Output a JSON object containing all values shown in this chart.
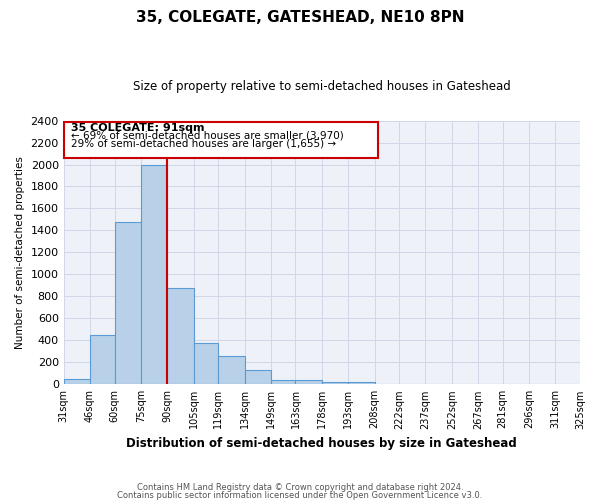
{
  "title": "35, COLEGATE, GATESHEAD, NE10 8PN",
  "subtitle": "Size of property relative to semi-detached houses in Gateshead",
  "xlabel": "Distribution of semi-detached houses by size in Gateshead",
  "ylabel": "Number of semi-detached properties",
  "bin_edges": [
    31,
    46,
    60,
    75,
    90,
    105,
    119,
    134,
    149,
    163,
    178,
    193,
    208,
    222,
    237,
    252,
    267,
    281,
    296,
    311,
    325
  ],
  "bar_heights": [
    50,
    450,
    1480,
    2000,
    880,
    375,
    255,
    130,
    35,
    35,
    20,
    20,
    0,
    0,
    0,
    0,
    0,
    0,
    0,
    0
  ],
  "bar_facecolor": "#b8d0e8",
  "bar_edgecolor": "#5b9bd5",
  "grid_color": "#d0d8e8",
  "background_color": "#eef2f8",
  "vline_x": 90,
  "vline_color": "#cc0000",
  "ylim": [
    0,
    2400
  ],
  "yticks": [
    0,
    200,
    400,
    600,
    800,
    1000,
    1200,
    1400,
    1600,
    1800,
    2000,
    2200,
    2400
  ],
  "annotation_title": "35 COLEGATE: 91sqm",
  "annotation_line1": "← 69% of semi-detached houses are smaller (3,970)",
  "annotation_line2": "29% of semi-detached houses are larger (1,655) →",
  "annotation_border_color": "#cc0000",
  "footer_line1": "Contains HM Land Registry data © Crown copyright and database right 2024.",
  "footer_line2": "Contains public sector information licensed under the Open Government Licence v3.0.",
  "x_tick_labels": [
    "31sqm",
    "46sqm",
    "60sqm",
    "75sqm",
    "90sqm",
    "105sqm",
    "119sqm",
    "134sqm",
    "149sqm",
    "163sqm",
    "178sqm",
    "193sqm",
    "208sqm",
    "222sqm",
    "237sqm",
    "252sqm",
    "267sqm",
    "281sqm",
    "296sqm",
    "311sqm",
    "325sqm"
  ]
}
